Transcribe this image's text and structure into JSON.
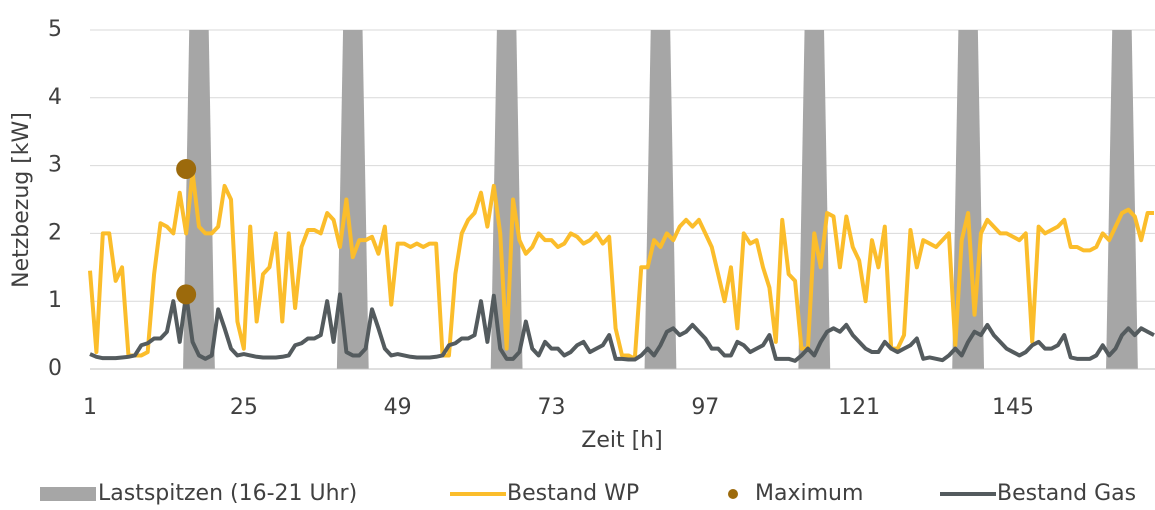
{
  "chart_data": {
    "type": "line",
    "x_label": "Zeit [h]",
    "y_label": "Netzbezug [kW]",
    "xlim": [
      1,
      167
    ],
    "xticks": [
      1,
      25,
      49,
      73,
      97,
      121,
      145
    ],
    "ylim": [
      0,
      5
    ],
    "yticks": [
      0,
      1,
      2,
      3,
      4,
      5
    ],
    "grid": true,
    "bands": {
      "name": "Lastspitzen (16-21 Uhr)",
      "color": "#a6a6a6",
      "ranges": [
        [
          16,
          20
        ],
        [
          40,
          44
        ],
        [
          64,
          68
        ],
        [
          88,
          92
        ],
        [
          112,
          116
        ],
        [
          136,
          140
        ],
        [
          160,
          164
        ]
      ]
    },
    "x": [
      1,
      2,
      3,
      4,
      5,
      6,
      7,
      8,
      9,
      10,
      11,
      12,
      13,
      14,
      15,
      16,
      17,
      18,
      19,
      20,
      21,
      22,
      23,
      24,
      25,
      26,
      27,
      28,
      29,
      30,
      31,
      32,
      33,
      34,
      35,
      36,
      37,
      38,
      39,
      40,
      41,
      42,
      43,
      44,
      45,
      46,
      47,
      48,
      49,
      50,
      51,
      52,
      53,
      54,
      55,
      56,
      57,
      58,
      59,
      60,
      61,
      62,
      63,
      64,
      65,
      66,
      67,
      68,
      69,
      70,
      71,
      72,
      73,
      74,
      75,
      76,
      77,
      78,
      79,
      80,
      81,
      82,
      83,
      84,
      85,
      86,
      87,
      88,
      89,
      90,
      91,
      92,
      93,
      94,
      95,
      96,
      97,
      98,
      99,
      100,
      101,
      102,
      103,
      104,
      105,
      106,
      107,
      108,
      109,
      110,
      111,
      112,
      113,
      114,
      115,
      116,
      117,
      118,
      119,
      120,
      121,
      122,
      123,
      124,
      125,
      126,
      127,
      128,
      129,
      130,
      131,
      132,
      133,
      134,
      135,
      136,
      137,
      138,
      139,
      140,
      141,
      142,
      143,
      144,
      145,
      146,
      147,
      148,
      149,
      150,
      151,
      152,
      153,
      154,
      155,
      156,
      157,
      158,
      159,
      160,
      161,
      162,
      163,
      164,
      165,
      166,
      167
    ],
    "series": [
      {
        "name": "Bestand WP",
        "type": "line",
        "color": "#fbbd2b",
        "values": [
          1.45,
          0.25,
          2.0,
          2.0,
          1.3,
          1.5,
          0.2,
          0.2,
          0.2,
          0.25,
          1.4,
          2.15,
          2.1,
          2.0,
          2.6,
          2.0,
          2.9,
          2.1,
          2.0,
          2.0,
          2.1,
          2.7,
          2.5,
          0.7,
          0.3,
          2.1,
          0.7,
          1.4,
          1.5,
          2.0,
          0.7,
          2.0,
          0.9,
          1.8,
          2.05,
          2.05,
          2.0,
          2.3,
          2.2,
          1.8,
          2.5,
          1.65,
          1.9,
          1.9,
          1.95,
          1.7,
          2.1,
          0.95,
          1.85,
          1.85,
          1.8,
          1.85,
          1.8,
          1.85,
          1.85,
          0.2,
          0.2,
          1.4,
          2.0,
          2.2,
          2.3,
          2.6,
          2.1,
          2.7,
          2.0,
          0.3,
          2.5,
          1.9,
          1.7,
          1.8,
          2.0,
          1.9,
          1.9,
          1.8,
          1.85,
          2.0,
          1.95,
          1.85,
          1.9,
          2.0,
          1.85,
          1.95,
          0.6,
          0.2,
          0.2,
          0.15,
          1.5,
          1.5,
          1.9,
          1.8,
          2.0,
          1.9,
          2.1,
          2.2,
          2.1,
          2.2,
          2.0,
          1.8,
          1.4,
          1.0,
          1.5,
          0.6,
          2.0,
          1.85,
          1.9,
          1.5,
          1.2,
          0.4,
          2.2,
          1.4,
          1.3,
          0.3,
          0.3,
          2.0,
          1.5,
          2.3,
          2.25,
          1.5,
          2.25,
          1.8,
          1.6,
          1.0,
          1.9,
          1.5,
          2.1,
          0.3,
          0.3,
          0.5,
          2.05,
          1.5,
          1.9,
          1.85,
          1.8,
          1.9,
          2.0,
          0.35,
          1.9,
          2.3,
          0.8,
          2.0,
          2.2,
          2.1,
          2.0,
          2.0,
          1.95,
          1.9,
          2.0,
          0.4,
          2.1,
          2.0,
          2.05,
          2.1,
          2.2,
          1.8,
          1.8,
          1.75,
          1.75,
          1.8,
          2.0,
          1.9,
          2.1,
          2.3,
          2.35,
          2.25,
          1.9,
          2.3,
          2.3
        ]
      },
      {
        "name": "Maximum",
        "type": "scatter",
        "color": "#9c6a0c",
        "x": [
          16,
          16
        ],
        "values": [
          2.95,
          1.1
        ]
      },
      {
        "name": "Bestand Gas",
        "type": "line",
        "color": "#545b5e",
        "values": [
          0.22,
          0.18,
          0.16,
          0.16,
          0.16,
          0.17,
          0.18,
          0.2,
          0.35,
          0.38,
          0.45,
          0.45,
          0.55,
          1.0,
          0.4,
          1.1,
          0.4,
          0.2,
          0.15,
          0.2,
          0.88,
          0.6,
          0.3,
          0.2,
          0.22,
          0.2,
          0.18,
          0.17,
          0.17,
          0.17,
          0.18,
          0.2,
          0.35,
          0.38,
          0.45,
          0.45,
          0.5,
          1.0,
          0.4,
          1.1,
          0.25,
          0.2,
          0.2,
          0.3,
          0.88,
          0.6,
          0.3,
          0.2,
          0.22,
          0.2,
          0.18,
          0.17,
          0.17,
          0.17,
          0.18,
          0.2,
          0.35,
          0.38,
          0.45,
          0.45,
          0.5,
          1.0,
          0.4,
          1.08,
          0.3,
          0.15,
          0.15,
          0.25,
          0.7,
          0.3,
          0.2,
          0.4,
          0.3,
          0.3,
          0.2,
          0.25,
          0.35,
          0.4,
          0.25,
          0.3,
          0.35,
          0.5,
          0.15,
          0.15,
          0.14,
          0.14,
          0.2,
          0.3,
          0.2,
          0.35,
          0.55,
          0.6,
          0.5,
          0.55,
          0.65,
          0.55,
          0.45,
          0.3,
          0.3,
          0.2,
          0.2,
          0.4,
          0.35,
          0.25,
          0.3,
          0.35,
          0.5,
          0.15,
          0.15,
          0.15,
          0.12,
          0.2,
          0.3,
          0.2,
          0.4,
          0.55,
          0.6,
          0.55,
          0.65,
          0.5,
          0.4,
          0.3,
          0.25,
          0.25,
          0.4,
          0.3,
          0.25,
          0.3,
          0.35,
          0.45,
          0.15,
          0.17,
          0.15,
          0.13,
          0.2,
          0.3,
          0.2,
          0.4,
          0.55,
          0.5,
          0.65,
          0.5,
          0.4,
          0.3,
          0.25,
          0.2,
          0.25,
          0.35,
          0.4,
          0.3,
          0.3,
          0.35,
          0.5,
          0.17,
          0.15,
          0.15,
          0.15,
          0.2,
          0.35,
          0.2,
          0.3,
          0.5,
          0.6,
          0.5,
          0.6,
          0.55,
          0.5
        ]
      }
    ]
  }
}
